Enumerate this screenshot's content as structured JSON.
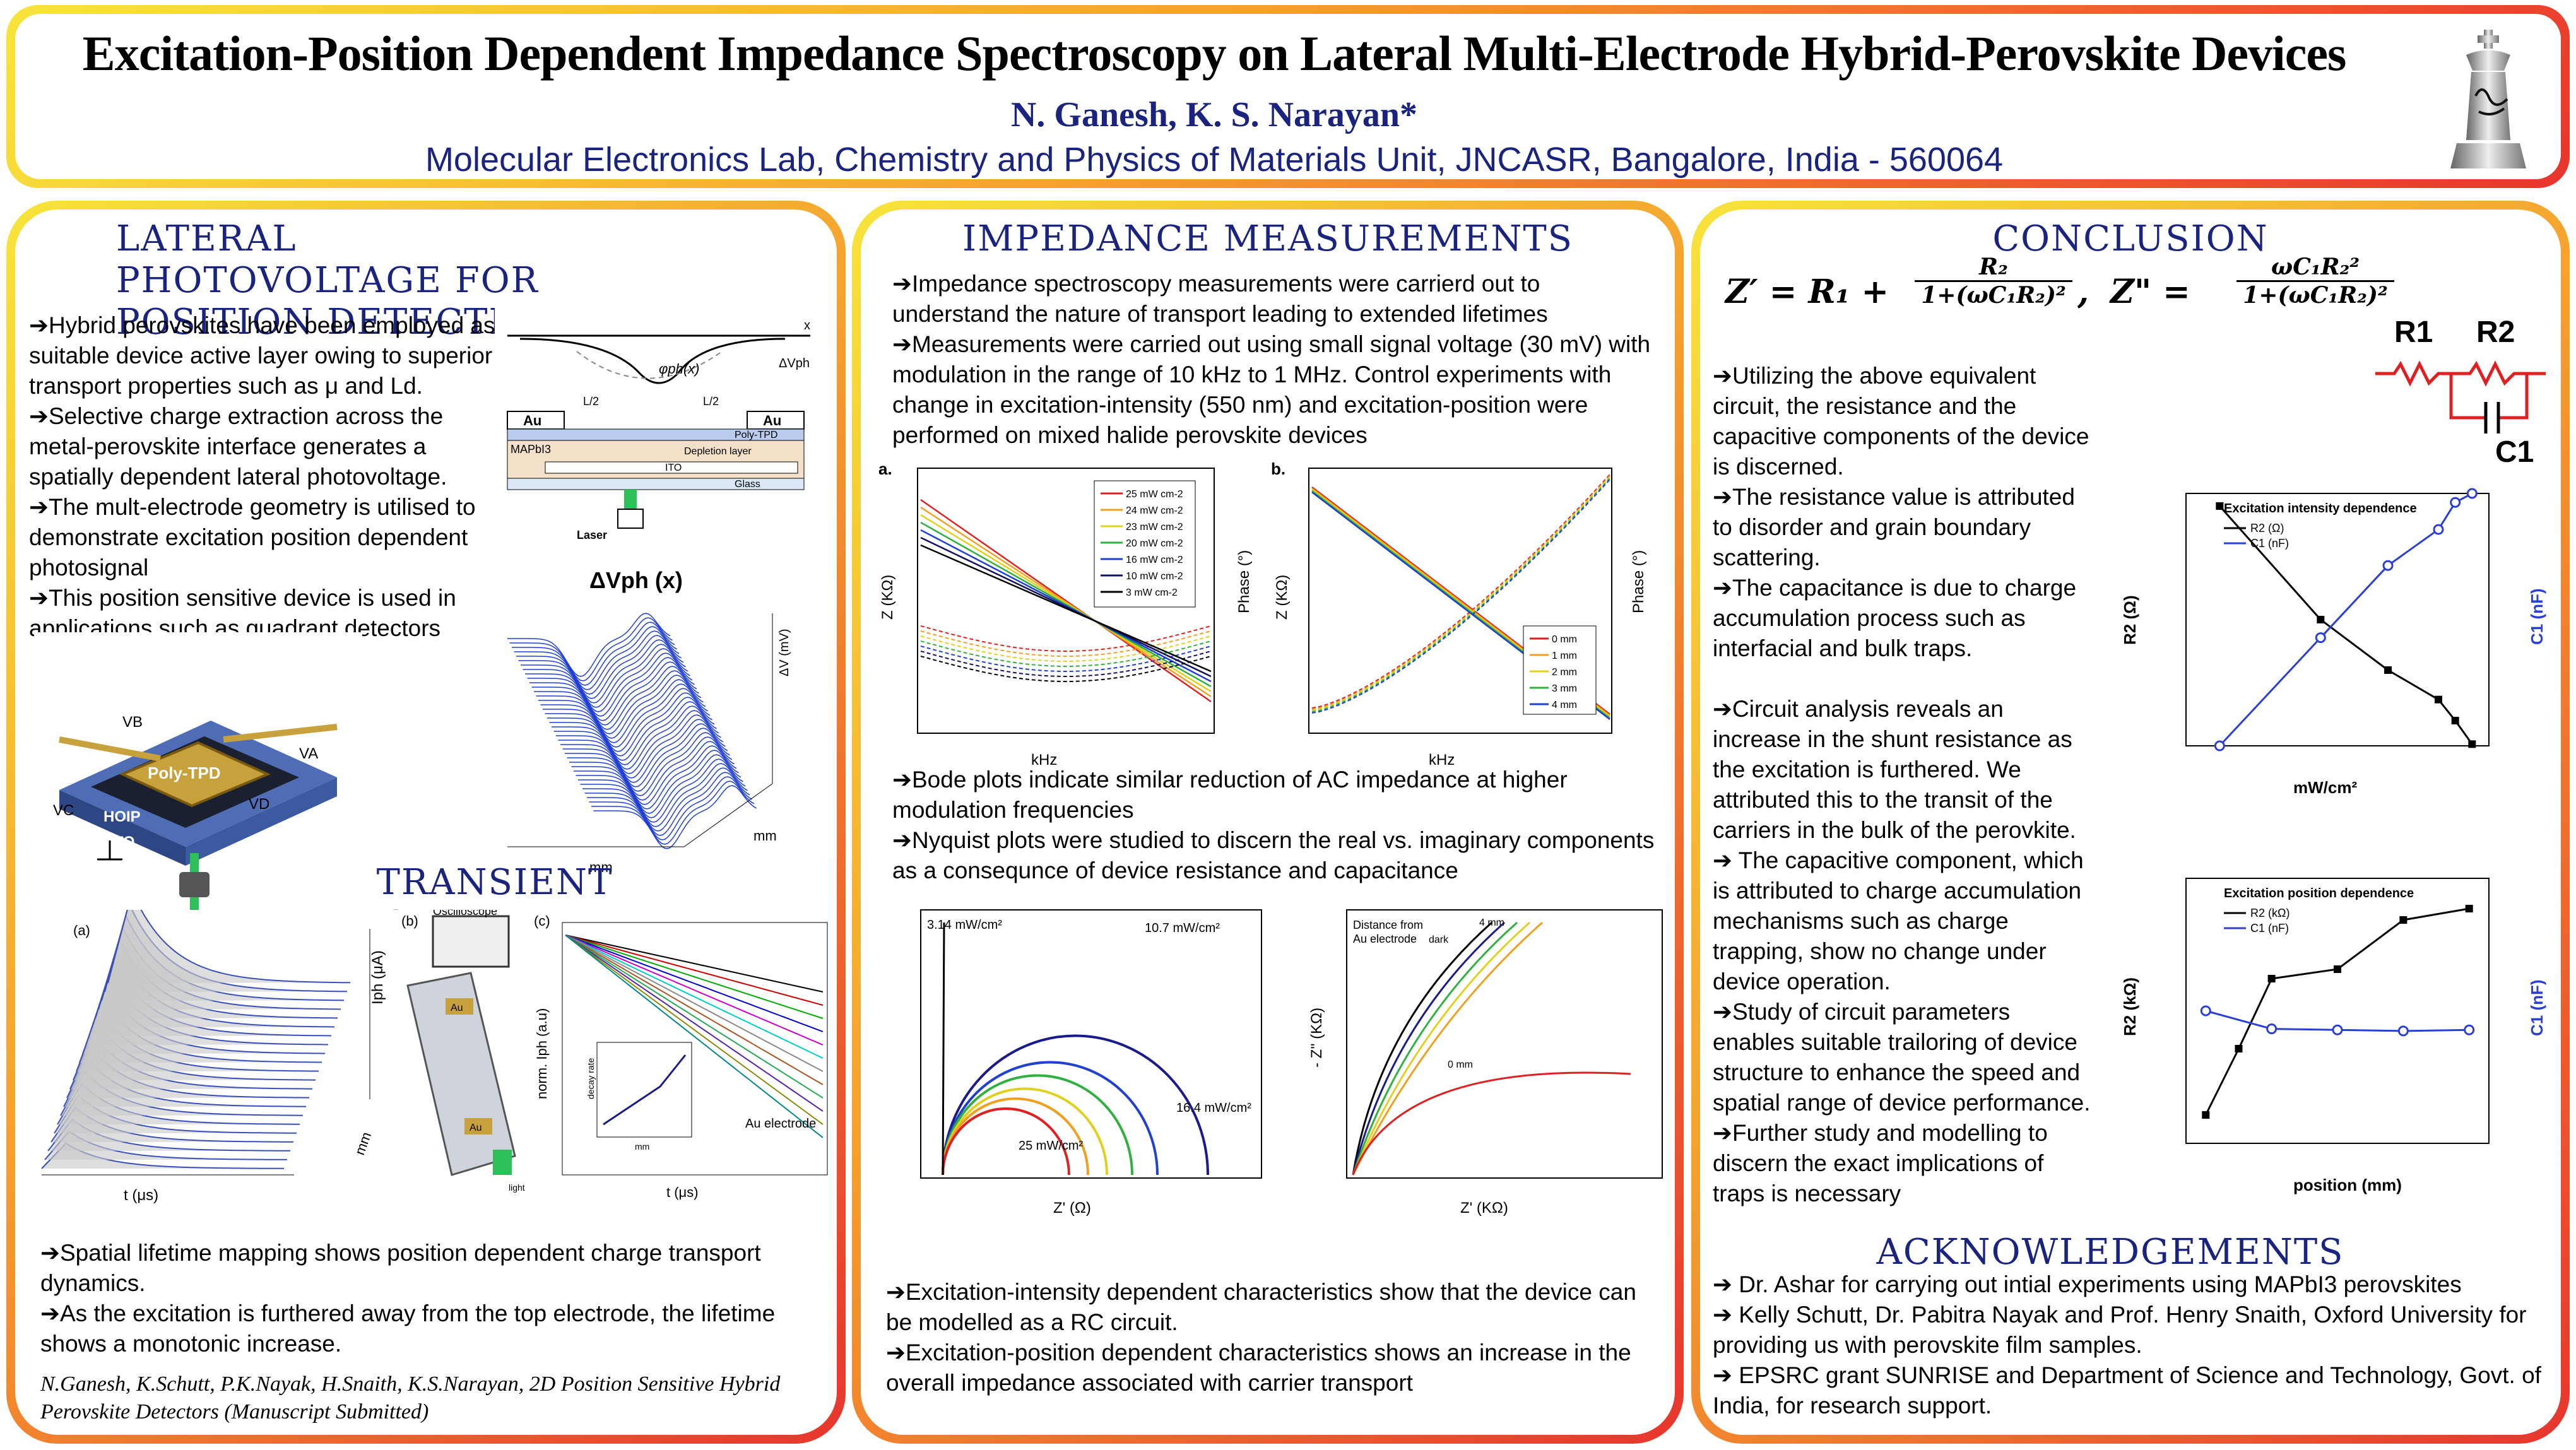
{
  "header": {
    "title": "Excitation-Position Dependent Impedance Spectroscopy on Lateral Multi-Electrode Hybrid-Perovskite Devices",
    "authors": "N. Ganesh, K. S. Narayan*",
    "affiliation": "Molecular Electronics Lab, Chemistry and Physics of Materials Unit, JNCASR, Bangalore, India - 560064",
    "logo_icon": "jncasr-chess-king-logo"
  },
  "left": {
    "heading1": "LATERAL PHOTOVOLTAGE FOR POSITION DETECTION",
    "bullets1": [
      "➔Hybrid perovskites have been employed as suitable device active layer owing to superior transport properties such as μ and Ld.",
      "➔Selective charge extraction across the metal-perovskite interface generates a spatially dependent lateral photovoltage.",
      "➔The mult-electrode geometry is utilised to demonstrate excitation position dependent photosignal",
      "➔This position sensitive device is used in applications such as quadrant detectors"
    ],
    "schematic": {
      "au_left": "Au",
      "au_right": "Au",
      "polytpd": "Poly-TPD",
      "mapbi": "MAPbI3",
      "depletion": "Depletion layer",
      "ito": "ITO",
      "glass": "Glass",
      "laser": "Laser",
      "half_left": "L/2",
      "half_right": "L/2",
      "phi": "φph(x)",
      "dv": "ΔVph",
      "x": "x"
    },
    "device": {
      "polytpd": "Poly-TPD",
      "hoip": "HOIP",
      "ito": "ITO",
      "va": "VA",
      "vb": "VB",
      "vc": "VC",
      "vd": "VD"
    },
    "surface": {
      "title": "ΔVph (x)",
      "zlabel": "ΔV (mV)",
      "xlabel": "mm",
      "ylabel": "mm"
    },
    "heading2": "TRANSIENT PHOTOCURRENT",
    "transient": {
      "a": "(a)",
      "b": "(b)",
      "c": "(c)",
      "ylabel_a": "Iph (μA)",
      "xlabel_a": "t (μs)",
      "ylabel_y": "mm",
      "oscilloscope": "Oscilloscope",
      "au1": "Au",
      "au2": "Au",
      "light": "light",
      "ylabel_c": "norm. Iph (a.u)",
      "xlabel_c": "t (μs)",
      "au_electrode": "Au electrode",
      "inset_x": "mm",
      "inset_y": "decay rate"
    },
    "bullets2": [
      "➔Spatial lifetime mapping shows position dependent charge transport dynamics.",
      "➔As the excitation is furthered away from the top electrode, the lifetime shows a monotonic increase."
    ],
    "citation": "N.Ganesh, K.Schutt, P.K.Nayak, H.Snaith, K.S.Narayan, 2D Position Sensitive Hybrid Perovskite Detectors (Manuscript Submitted)"
  },
  "middle": {
    "heading": "IMPEDANCE MEASUREMENTS",
    "bullets1": [
      "➔Impedance spectroscopy measurements were carrierd out to understand the nature of transport leading to extended lifetimes",
      "➔Measurements were carried out using small signal voltage (30 mV) with modulation in the range of 10 kHz to 1 MHz. Control experiments with change in excitation-intensity (550 nm) and excitation-position were performed on mixed halide perovskite devices"
    ],
    "bode_a": {
      "label": "a.",
      "ylabel": "Z (KΩ)",
      "y2label": "Phase (°)",
      "xlabel": "kHz",
      "legend": [
        "25 mW cm-2",
        "24 mW cm-2",
        "23 mW cm-2",
        "20 mW cm-2",
        "16 mW cm-2",
        "10 mW cm-2",
        "3 mW cm-2"
      ]
    },
    "bode_b": {
      "label": "b.",
      "ylabel": "Z (KΩ)",
      "y2label": "Phase (°)",
      "xlabel": "kHz",
      "legend": [
        "0 mm",
        "1 mm",
        "2 mm",
        "3 mm",
        "4 mm"
      ]
    },
    "bullets2": [
      "➔Bode plots indicate similar reduction of AC impedance at higher modulation frequencies",
      "➔Nyquist plots were studied to discern the real vs. imaginary components as a consequnce of device resistance and capacitance"
    ],
    "nyq_a": {
      "xlabel": "Z' (Ω)",
      "l1": "3.14 mW/cm²",
      "l2": "10.7 mW/cm²",
      "l3": "16.4 mW/cm²",
      "l4": "25 mW/cm²"
    },
    "nyq_b": {
      "xlabel": "Z' (KΩ)",
      "ylabel": "- Z'' (KΩ)",
      "l1": "Distance from",
      "l2": "Au electrode",
      "l3": "dark",
      "l4": "4 mm",
      "l5": "0 mm"
    },
    "bullets3": [
      "➔Excitation-intensity dependent characteristics show that the device can be modelled as a RC circuit.",
      "➔Excitation-position dependent characteristics shows an increase in the overall impedance associated with carrier transport"
    ]
  },
  "right": {
    "heading": "CONCLUSION",
    "eq1_lhs": "Z′ = R₁ +",
    "eq1_num": "R₂",
    "eq1_den": "1+(ωC₁R₂)²",
    "eq2_lhs": "Z\" =",
    "eq2_num": "ωC₁R₂²",
    "eq2_den": "1+(ωC₁R₂)²",
    "circuit": {
      "r1": "R1",
      "r2": "R2",
      "c1": "C1"
    },
    "bullets": [
      "➔Utilizing the above equivalent circuit, the resistance and the capacitive components of the device is discerned.",
      "➔The resistance value is attributed to disorder and grain boundary scattering.",
      "➔The capacitance is due to charge accumulation process such as interfacial and bulk traps.",
      "",
      "➔Circuit analysis reveals an increase in the shunt resistance as the excitation is furthered. We attributed this to the transit of the carriers in the bulk of the perovkite.",
      "➔ The capacitive component, which is attributed to charge accumulation mechanisms such as charge trapping, show no change under device operation.",
      "➔Study of circuit parameters enables suitable trailoring of device structure to enhance the speed and spatial range of device performance.",
      "➔Further study and modelling to discern the exact implications of traps is necessary"
    ],
    "ack_heading": "ACKNOWLEDGEMENTS",
    "acks": [
      "➔ Dr. Ashar for carrying out intial experiments using MAPbI3 perovskites",
      "➔ Kelly Schutt, Dr. Pabitra Nayak and Prof. Henry Snaith, Oxford University for providing us with perovskite film samples.",
      "➔ EPSRC grant SUNRISE and Department of Science and Technology, Govt. of India, for research support."
    ]
  },
  "chart_data": [
    {
      "type": "line",
      "title": "Excitation intensity dependence",
      "xlabel": "mW/cm²",
      "ylabel": "R2 (Ω)",
      "y2label": "C1 (nF)",
      "xlim": [
        8,
        26
      ],
      "ylim": [
        260,
        560
      ],
      "y2lim": [
        10.0,
        11.4
      ],
      "series": [
        {
          "name": "R2 (Ω)",
          "color": "#000000",
          "x": [
            10,
            16,
            20,
            23,
            24,
            25
          ],
          "values": [
            545,
            410,
            350,
            315,
            290,
            262
          ]
        },
        {
          "name": "C1 (nF)",
          "color": "#2b3fd6",
          "axis": "right",
          "x": [
            10,
            16,
            20,
            23,
            24,
            25
          ],
          "values": [
            10.0,
            10.6,
            11.0,
            11.2,
            11.35,
            11.4
          ]
        }
      ]
    },
    {
      "type": "line",
      "title": "Excitation position dependence",
      "xlabel": "position (mm)",
      "ylabel": "R2 (kΩ)",
      "y2label": "C1 (nF)",
      "xlim": [
        -0.3,
        4.3
      ],
      "ylim": [
        1,
        15
      ],
      "y2lim": [
        6.5,
        9
      ],
      "series": [
        {
          "name": "R2 (kΩ)",
          "color": "#000000",
          "x": [
            0,
            0.5,
            1,
            2,
            3,
            4
          ],
          "values": [
            2.5,
            6.0,
            9.7,
            10.2,
            12.8,
            13.4
          ]
        },
        {
          "name": "C1 (nF)",
          "color": "#2b3fd6",
          "axis": "right",
          "x": [
            0,
            1,
            2,
            3,
            4
          ],
          "values": [
            7.75,
            7.58,
            7.57,
            7.56,
            7.57
          ]
        }
      ]
    }
  ]
}
